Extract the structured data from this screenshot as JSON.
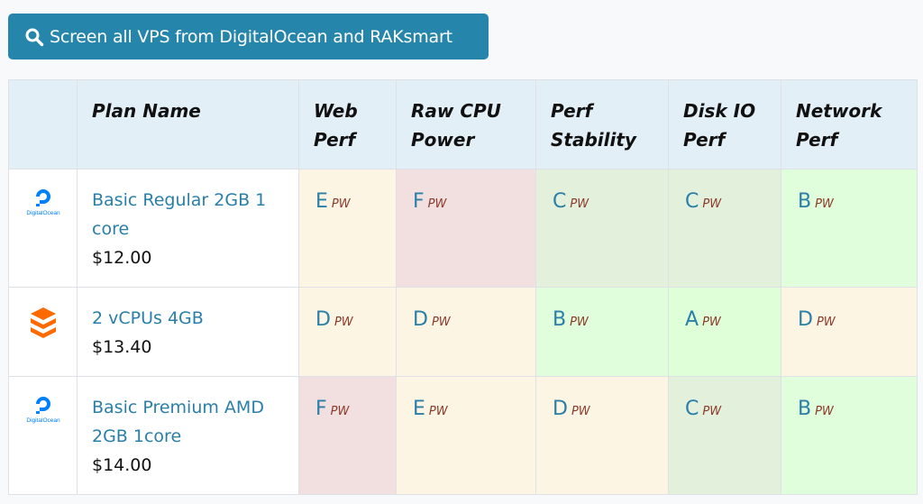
{
  "screen_button": {
    "label": "Screen all VPS from DigitalOcean and RAKsmart",
    "icon": "search-icon"
  },
  "table": {
    "headers": [
      "",
      "Plan Name",
      "Web Perf",
      "Raw CPU Power",
      "Perf Stability",
      "Disk IO Perf",
      "Network Perf"
    ],
    "rows": [
      {
        "provider": "DigitalOcean",
        "logo_text": "DigitalOcean",
        "plan": "Basic Regular 2GB 1 core",
        "price": "$12.00",
        "scores": [
          {
            "grade": "E",
            "tag": "PW"
          },
          {
            "grade": "F",
            "tag": "PW"
          },
          {
            "grade": "C",
            "tag": "PW"
          },
          {
            "grade": "C",
            "tag": "PW"
          },
          {
            "grade": "B",
            "tag": "PW"
          }
        ]
      },
      {
        "provider": "RAKsmart",
        "plan": "2 vCPUs 4GB",
        "price": "$13.40",
        "scores": [
          {
            "grade": "D",
            "tag": "PW"
          },
          {
            "grade": "D",
            "tag": "PW"
          },
          {
            "grade": "B",
            "tag": "PW"
          },
          {
            "grade": "A",
            "tag": "PW"
          },
          {
            "grade": "D",
            "tag": "PW"
          }
        ]
      },
      {
        "provider": "DigitalOcean",
        "logo_text": "DigitalOcean",
        "plan": "Basic Premium AMD 2GB 1core",
        "price": "$14.00",
        "scores": [
          {
            "grade": "F",
            "tag": "PW"
          },
          {
            "grade": "E",
            "tag": "PW"
          },
          {
            "grade": "D",
            "tag": "PW"
          },
          {
            "grade": "C",
            "tag": "PW"
          },
          {
            "grade": "B",
            "tag": "PW"
          }
        ]
      }
    ]
  },
  "colors": {
    "button_bg": "#2685ab",
    "header_bg": "#e3eff7",
    "link": "#2a7fa8",
    "grade_A": "#dfffd9",
    "grade_B": "#e1fedc",
    "grade_C": "#e2f0dc",
    "grade_D": "#fdf5e4",
    "grade_E": "#fdf5e3",
    "grade_F": "#f2dfe0",
    "digitalocean_blue": "#0080ff",
    "raksmart_orange": "#ff6a00"
  }
}
